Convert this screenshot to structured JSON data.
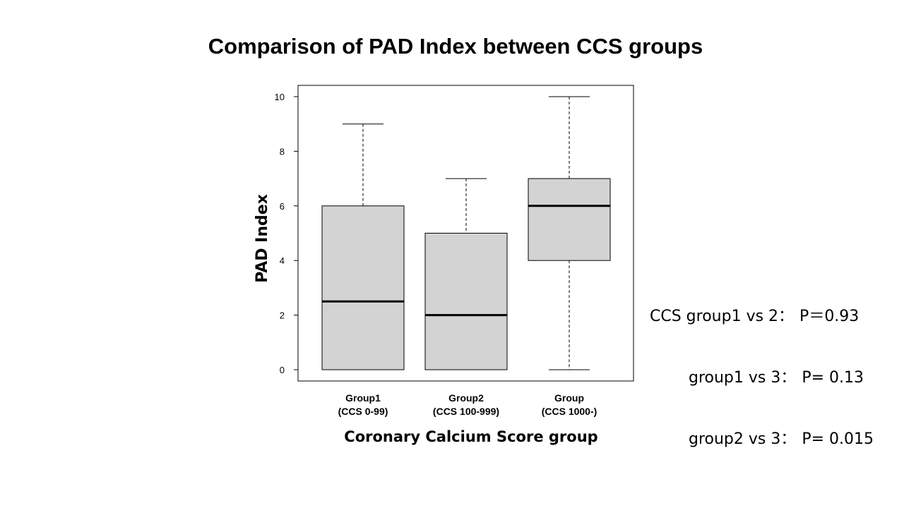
{
  "chart_data": {
    "type": "box",
    "title": "Comparison of PAD Index between CCS groups",
    "xlabel": "Coronary Calcium Score group",
    "ylabel": "PAD Index",
    "ylim": [
      0,
      10
    ],
    "yticks": [
      0,
      2,
      4,
      6,
      8,
      10
    ],
    "grid": false,
    "box_color": "#d3d3d3",
    "categories": [
      {
        "name": "Group1",
        "range": "(CCS 0-99)"
      },
      {
        "name": "Group2",
        "range": "(CCS 100-999)"
      },
      {
        "name": "Group",
        "range": "(CCS 1000-)"
      }
    ],
    "boxes": [
      {
        "min": 0,
        "q1": 0,
        "median": 2.5,
        "q3": 6,
        "max": 9
      },
      {
        "min": 0,
        "q1": 0,
        "median": 2,
        "q3": 5,
        "max": 7
      },
      {
        "min": 0,
        "q1": 4,
        "median": 6,
        "q3": 7,
        "max": 10
      }
    ]
  },
  "stats": [
    {
      "label": "CCS group1 vs 2：",
      "p": "P＝0.93"
    },
    {
      "label": "group1 vs 3：",
      "p": "P= 0.13"
    },
    {
      "label": "group2 vs 3：",
      "p": "P= 0.015"
    }
  ]
}
